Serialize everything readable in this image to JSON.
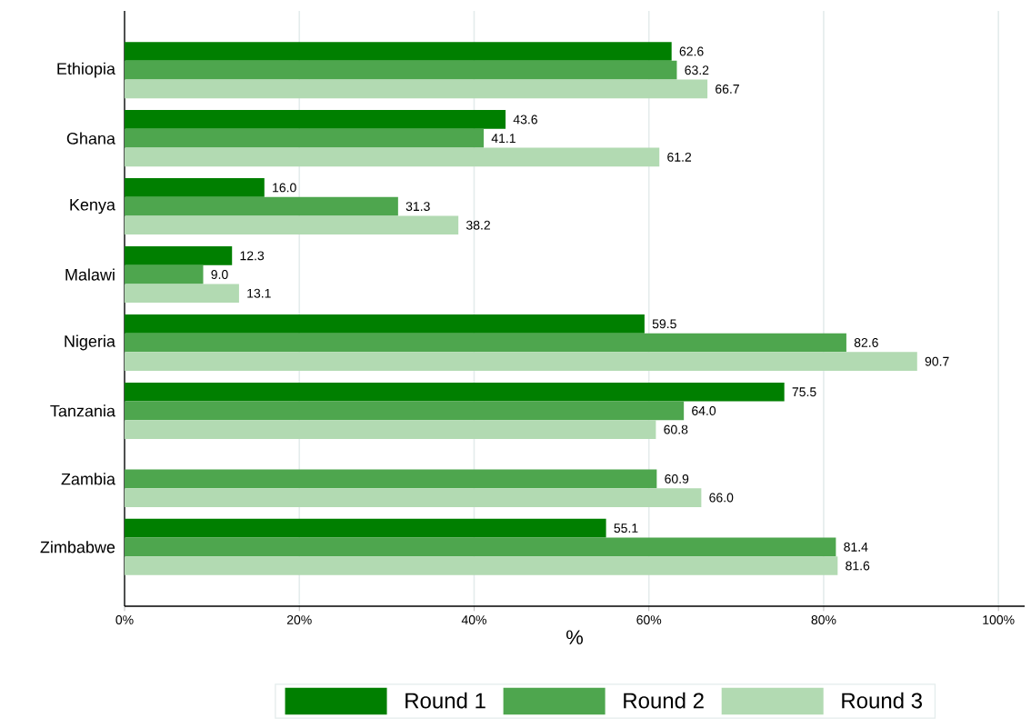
{
  "chart_data": {
    "type": "bar",
    "orientation": "horizontal",
    "xlabel": "%",
    "categories": [
      "Ethiopia",
      "Ghana",
      "Kenya",
      "Malawi",
      "Nigeria",
      "Tanzania",
      "Zambia",
      "Zimbabwe"
    ],
    "series": [
      {
        "name": "Round 1",
        "color": "#007f00",
        "values": [
          62.6,
          43.6,
          16.0,
          12.3,
          59.5,
          75.5,
          null,
          55.1
        ],
        "value_labels": [
          "62.6",
          "43.6",
          "16.0",
          "12.3",
          "59.5",
          "75.5",
          null,
          "55.1"
        ]
      },
      {
        "name": "Round 2",
        "color": "#4ea64e",
        "values": [
          63.2,
          41.1,
          31.3,
          9.0,
          82.6,
          64.0,
          60.9,
          81.4
        ],
        "value_labels": [
          "63.2",
          "41.1",
          "31.3",
          "9.0",
          "82.6",
          "64.0",
          "60.9",
          "81.4"
        ]
      },
      {
        "name": "Round 3",
        "color": "#b2dab2",
        "values": [
          66.7,
          61.2,
          38.2,
          13.1,
          90.7,
          60.8,
          66.0,
          81.6
        ],
        "value_labels": [
          "66.7",
          "61.2",
          "38.2",
          "13.1",
          "90.7",
          "60.8",
          "66.0",
          "81.6"
        ]
      }
    ],
    "xlim": [
      0,
      103
    ],
    "xticks": [
      {
        "value": 0,
        "label": "0%"
      },
      {
        "value": 20,
        "label": "20%"
      },
      {
        "value": 40,
        "label": "40%"
      },
      {
        "value": 60,
        "label": "60%"
      },
      {
        "value": 80,
        "label": "80%"
      },
      {
        "value": 100,
        "label": "100%"
      }
    ],
    "grid": "x",
    "legend": "bottom"
  }
}
